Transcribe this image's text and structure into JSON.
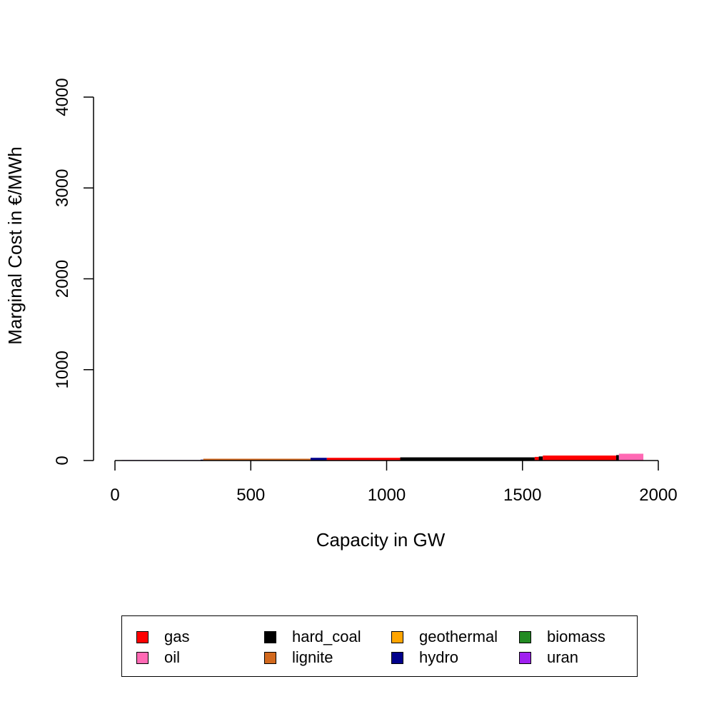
{
  "chart_data": {
    "type": "bar",
    "title": "",
    "xlabel": "Capacity in GW",
    "ylabel": "Marginal Cost in €/MWh",
    "xlim": [
      0,
      2000
    ],
    "ylim": [
      0,
      4000
    ],
    "x_ticks": [
      "0",
      "500",
      "1000",
      "1500",
      "2000"
    ],
    "y_ticks": [
      "0",
      "1000",
      "2000",
      "3000",
      "4000"
    ],
    "grid": false,
    "legend_position": "bottom",
    "legend": [
      {
        "name": "gas",
        "color": "#FF0000"
      },
      {
        "name": "hard_coal",
        "color": "#000000"
      },
      {
        "name": "geothermal",
        "color": "#FFA500"
      },
      {
        "name": "biomass",
        "color": "#228B22"
      },
      {
        "name": "oil",
        "color": "#FF69B4"
      },
      {
        "name": "lignite",
        "color": "#D2691E"
      },
      {
        "name": "hydro",
        "color": "#00008B"
      },
      {
        "name": "uran",
        "color": "#A020F0"
      }
    ],
    "segments": [
      {
        "fuel": "uran",
        "x_start": 25,
        "x_end": 315,
        "cost": 5
      },
      {
        "fuel": "hydro",
        "x_start": 315,
        "x_end": 325,
        "cost": 10
      },
      {
        "fuel": "lignite",
        "x_start": 325,
        "x_end": 720,
        "cost": 20
      },
      {
        "fuel": "hydro",
        "x_start": 720,
        "x_end": 780,
        "cost": 30
      },
      {
        "fuel": "gas",
        "x_start": 780,
        "x_end": 1050,
        "cost": 30
      },
      {
        "fuel": "hard_coal",
        "x_start": 1050,
        "x_end": 1545,
        "cost": 35
      },
      {
        "fuel": "gas",
        "x_start": 1545,
        "x_end": 1560,
        "cost": 40
      },
      {
        "fuel": "hard_coal",
        "x_start": 1560,
        "x_end": 1575,
        "cost": 45
      },
      {
        "fuel": "gas",
        "x_start": 1575,
        "x_end": 1845,
        "cost": 55
      },
      {
        "fuel": "hard_coal",
        "x_start": 1845,
        "x_end": 1855,
        "cost": 60
      },
      {
        "fuel": "oil",
        "x_start": 1855,
        "x_end": 1945,
        "cost": 75
      }
    ]
  }
}
